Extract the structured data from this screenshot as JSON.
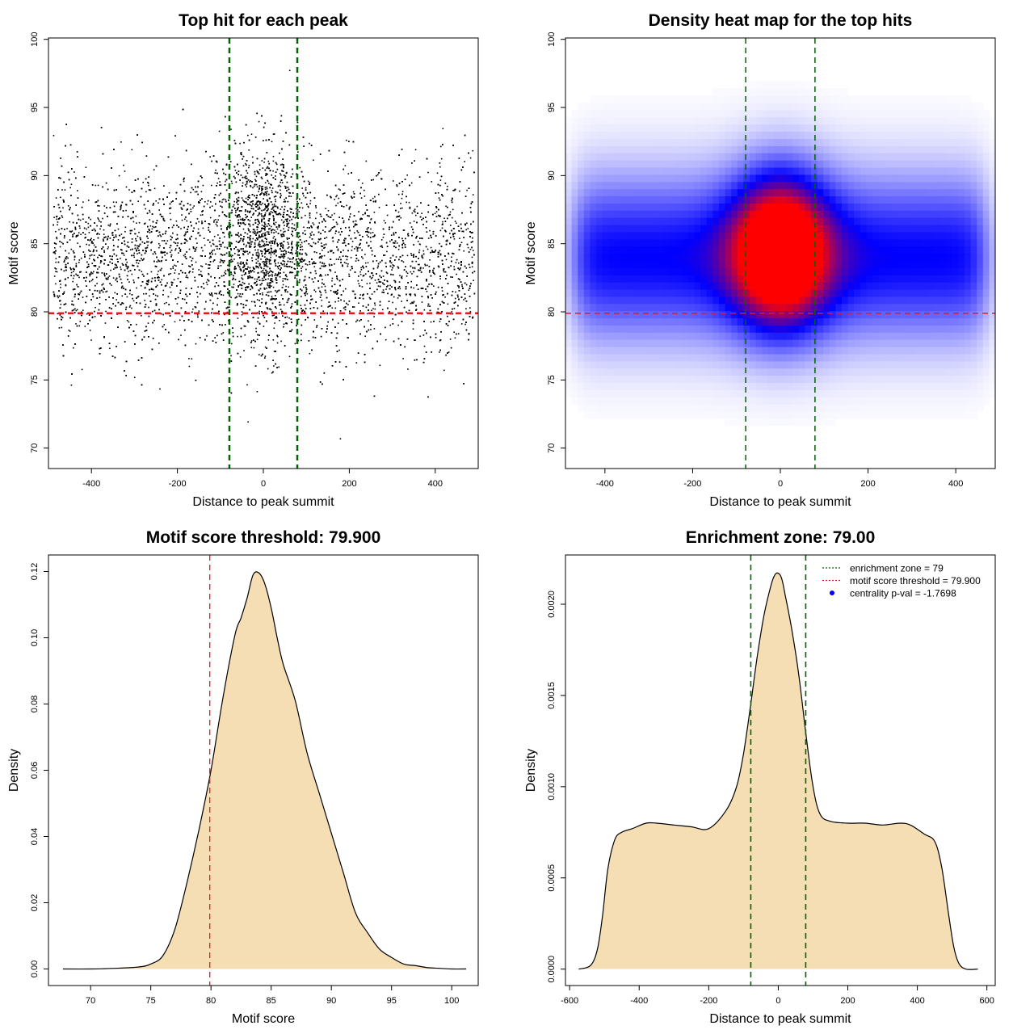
{
  "figure": {
    "panels": [
      "scatter",
      "heatmap",
      "score_density",
      "enrichment"
    ]
  },
  "chart_data": [
    {
      "type": "scatter",
      "title": "Top hit for each peak",
      "xlabel": "Distance to peak summit",
      "ylabel": "Motif score",
      "xlim": [
        -500,
        500
      ],
      "ylim": [
        68.5,
        100.1
      ],
      "xticks": [
        -400,
        -200,
        0,
        200,
        400
      ],
      "yticks": [
        70,
        75,
        80,
        85,
        90,
        95,
        100
      ],
      "point_color": "#000000",
      "point_count_approx": 32000,
      "distribution": {
        "x_range": [
          -490,
          490
        ],
        "background_score_mean": 84.0,
        "background_score_sd": 3.3,
        "central_score_mean": 85.5,
        "central_score_sd": 3.6,
        "central_fraction": 0.22,
        "central_sd_distance": 45
      },
      "vlines": {
        "values": [
          -79,
          79
        ],
        "color": "#006400",
        "style": "dashed"
      },
      "hlines": {
        "values": [
          79.9
        ],
        "color": "#e31a1c",
        "style": "dashed"
      }
    },
    {
      "type": "heatmap",
      "title": "Density heat map for the top hits",
      "xlabel": "Distance to peak summit",
      "ylabel": "Motif score",
      "xlim": [
        -490,
        490
      ],
      "ylim": [
        68.5,
        100.1
      ],
      "xticks": [
        -400,
        -200,
        0,
        200,
        400
      ],
      "yticks": [
        70,
        75,
        80,
        85,
        90,
        95,
        100
      ],
      "colorscale": [
        "#ffffff",
        "#0000ff",
        "#ff0000"
      ],
      "peak": {
        "x": 0,
        "y": 84.3
      },
      "vlines": {
        "values": [
          -79,
          79
        ],
        "color": "#006400",
        "style": "dashed"
      },
      "hlines": {
        "values": [
          79.9
        ],
        "color": "#e31a1c",
        "style": "dashed"
      }
    },
    {
      "type": "area",
      "title": "Motif score threshold: 79.900",
      "xlabel": "Motif score",
      "ylabel": "Density",
      "xlim": [
        66.5,
        102.2
      ],
      "ylim": [
        -0.005,
        0.125
      ],
      "xticks": [
        70,
        75,
        80,
        85,
        90,
        95,
        100
      ],
      "yticks": [
        0.0,
        0.02,
        0.04,
        0.06,
        0.08,
        0.1,
        0.12
      ],
      "ytick_labels": [
        "0.00",
        "0.02",
        "0.04",
        "0.06",
        "0.08",
        "0.10",
        "0.12"
      ],
      "fill": "#f5deb3",
      "x": [
        67.7,
        70,
        72,
        74,
        75,
        76,
        77,
        78,
        79,
        80,
        81,
        82,
        82.5,
        83,
        83.5,
        84,
        84.5,
        85,
        85.5,
        86,
        87,
        88,
        89,
        90,
        91,
        92,
        93,
        94,
        95,
        96,
        97,
        98,
        99,
        100,
        101.2
      ],
      "y": [
        0.0,
        0.0,
        0.0002,
        0.0006,
        0.0015,
        0.004,
        0.012,
        0.026,
        0.042,
        0.06,
        0.082,
        0.101,
        0.106,
        0.112,
        0.119,
        0.1195,
        0.116,
        0.109,
        0.1,
        0.092,
        0.081,
        0.065,
        0.053,
        0.041,
        0.029,
        0.017,
        0.011,
        0.006,
        0.0035,
        0.0015,
        0.001,
        0.0004,
        0.0002,
        0.0,
        0.0
      ],
      "vlines": {
        "values": [
          79.9
        ],
        "color": "#e31a1c",
        "style": "dashed"
      }
    },
    {
      "type": "area",
      "title": "Enrichment zone: 79.00",
      "xlabel": "Distance to peak summit",
      "ylabel": "Density",
      "xlim": [
        -612,
        624
      ],
      "ylim": [
        -9e-05,
        0.00227
      ],
      "xticks": [
        -600,
        -400,
        -200,
        0,
        200,
        400,
        600
      ],
      "yticks": [
        0.0,
        0.0005,
        0.001,
        0.0015,
        0.002
      ],
      "ytick_labels": [
        "0.0000",
        "0.0005",
        "0.0010",
        "0.0015",
        "0.0020"
      ],
      "fill": "#f5deb3",
      "x": [
        -574,
        -540,
        -520,
        -505,
        -490,
        -470,
        -450,
        -420,
        -380,
        -350,
        -300,
        -250,
        -200,
        -150,
        -120,
        -100,
        -80,
        -60,
        -40,
        -20,
        -10,
        0,
        10,
        20,
        40,
        60,
        80,
        100,
        120,
        150,
        200,
        250,
        300,
        350,
        380,
        420,
        450,
        470,
        490,
        505,
        520,
        540,
        574
      ],
      "y": [
        0.0,
        2e-05,
        0.00011,
        0.0003,
        0.00055,
        0.00071,
        0.00075,
        0.00077,
        0.0008,
        0.0008,
        0.00079,
        0.00078,
        0.00077,
        0.00087,
        0.001,
        0.00118,
        0.00144,
        0.00172,
        0.00195,
        0.00211,
        0.00216,
        0.00217,
        0.00214,
        0.00205,
        0.00185,
        0.0016,
        0.00128,
        0.001,
        0.00085,
        0.00081,
        0.0008,
        0.0008,
        0.00079,
        0.0008,
        0.00079,
        0.00074,
        0.0007,
        0.00056,
        0.0003,
        0.00012,
        3e-05,
        0.0,
        0.0
      ],
      "vlines": {
        "values": [
          -79,
          79
        ],
        "color": "#006400",
        "style": "dashed"
      },
      "legend": {
        "position": "top-right",
        "entries": [
          {
            "label": "enrichment zone = 79",
            "color": "#006400",
            "marker": "dotted-line"
          },
          {
            "label": "motif score threshold = 79.900",
            "color": "#e31a1c",
            "marker": "dotted-line"
          },
          {
            "label": "centrality p-val = -1.7698",
            "color": "#0000ff",
            "marker": "dot"
          }
        ]
      }
    }
  ]
}
